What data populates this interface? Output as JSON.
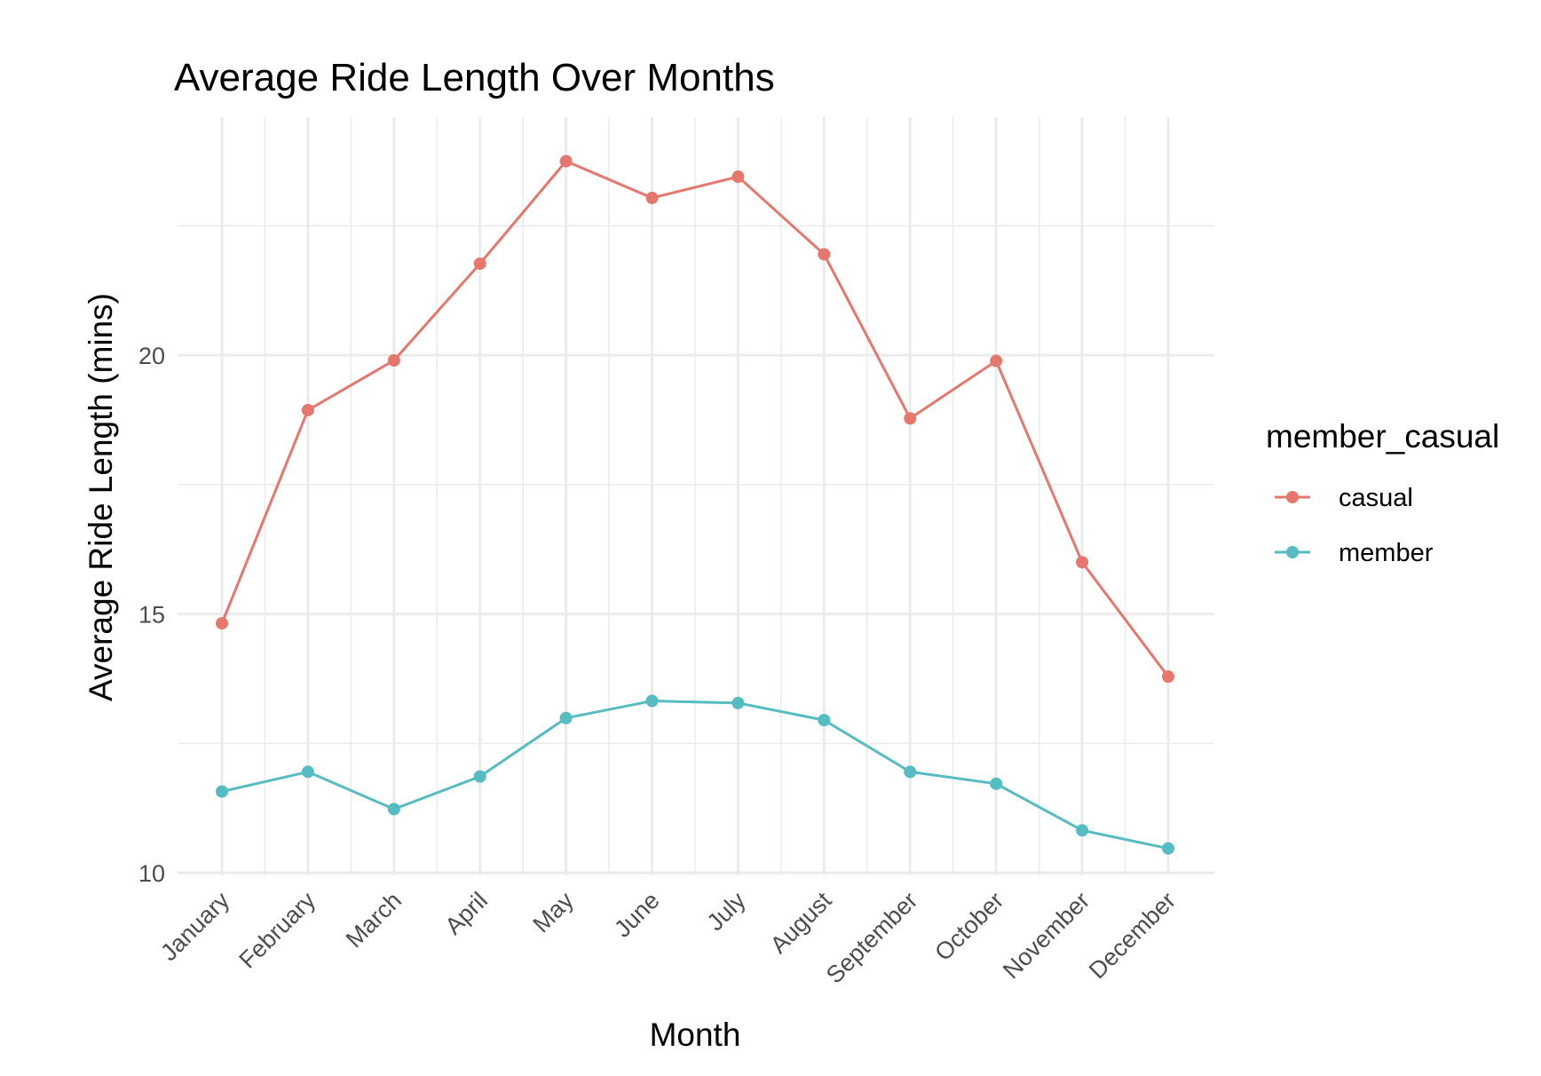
{
  "chart_data": {
    "type": "line",
    "title": "Average Ride Length Over Months",
    "xlabel": "Month",
    "ylabel": "Average Ride Length (mins)",
    "categories": [
      "January",
      "February",
      "March",
      "April",
      "May",
      "June",
      "July",
      "August",
      "September",
      "October",
      "November",
      "December"
    ],
    "ylim": [
      9.95,
      24.6
    ],
    "yticks": [
      10,
      15,
      20
    ],
    "grid": true,
    "legend": {
      "title": "member_casual",
      "position": "right"
    },
    "series": [
      {
        "name": "casual",
        "color": "#E5776C",
        "values": [
          14.82,
          18.94,
          19.9,
          21.77,
          23.75,
          23.04,
          23.45,
          21.95,
          18.78,
          19.89,
          16.0,
          13.79
        ]
      },
      {
        "name": "member",
        "color": "#55BCC2",
        "values": [
          11.57,
          11.95,
          11.23,
          11.86,
          12.99,
          13.32,
          13.28,
          12.95,
          11.95,
          11.72,
          10.82,
          10.47
        ]
      }
    ]
  }
}
